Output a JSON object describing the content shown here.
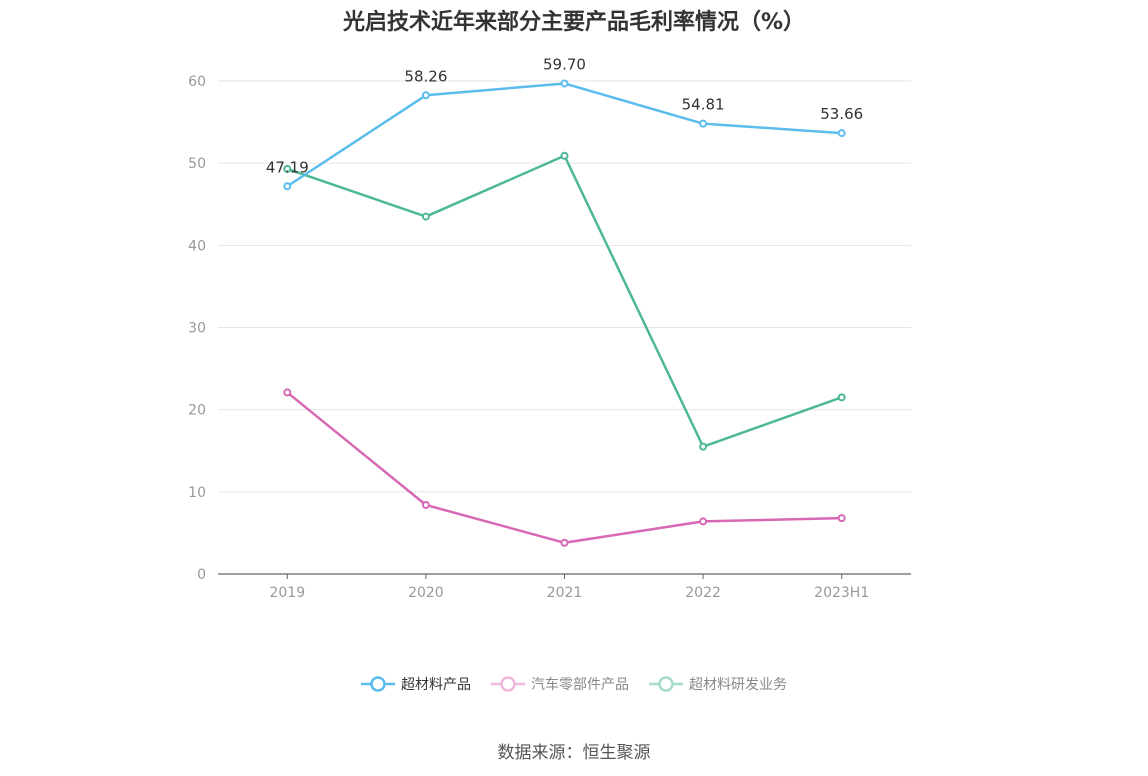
{
  "chart_data": {
    "type": "line",
    "title": "光启技术近年来部分主要产品毛利率情况（%）",
    "categories": [
      "2019",
      "2020",
      "2021",
      "2022",
      "2023H1"
    ],
    "ylim": [
      0,
      60
    ],
    "yticks": [
      0,
      10,
      20,
      30,
      40,
      50,
      60
    ],
    "grid": true,
    "legend_position": "bottom",
    "series": [
      {
        "name": "超材料产品",
        "color": "#5bbcee",
        "values": [
          47.19,
          58.26,
          59.7,
          54.81,
          53.66
        ],
        "labels": [
          "47.19",
          "58.26",
          "59.70",
          "54.81",
          "53.66"
        ]
      },
      {
        "name": "汽车零部件产品",
        "color": "#d768b4",
        "values": [
          22.1,
          8.4,
          3.8,
          6.4,
          6.8
        ]
      },
      {
        "name": "超材料研发业务",
        "color": "#4db898",
        "values": [
          49.3,
          43.5,
          50.9,
          15.5,
          21.5
        ]
      }
    ]
  },
  "source": "数据来源：恒生聚源"
}
